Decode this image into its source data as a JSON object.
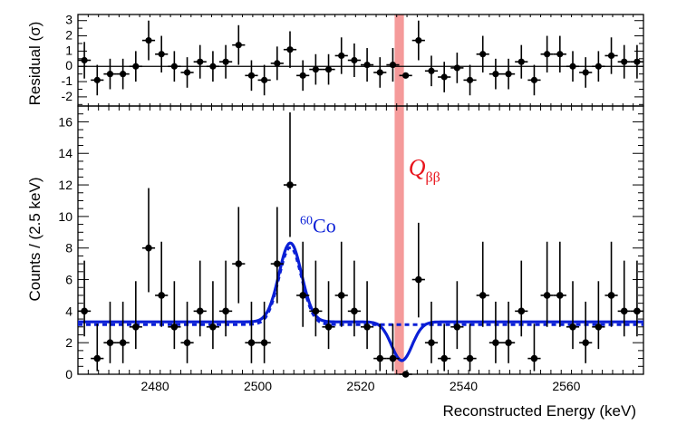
{
  "chart_data": [
    {
      "type": "scatter",
      "panel": "top",
      "ylabel": "Residual (σ)",
      "ylim": [
        -2.6,
        3.4
      ],
      "yticks": [
        -2,
        -1,
        0,
        1,
        2,
        3
      ],
      "xlim": [
        2465,
        2575
      ],
      "points": [
        {
          "x": 2466.25,
          "y": 0.4,
          "err": 1.2
        },
        {
          "x": 2468.75,
          "y": -0.9,
          "err": 1.0
        },
        {
          "x": 2471.25,
          "y": -0.5,
          "err": 1.0
        },
        {
          "x": 2473.75,
          "y": -0.5,
          "err": 1.0
        },
        {
          "x": 2476.25,
          "y": 0.0,
          "err": 1.0
        },
        {
          "x": 2478.75,
          "y": 1.7,
          "err": 1.3
        },
        {
          "x": 2481.25,
          "y": 0.8,
          "err": 1.2
        },
        {
          "x": 2483.75,
          "y": 0.0,
          "err": 1.0
        },
        {
          "x": 2486.25,
          "y": -0.4,
          "err": 1.0
        },
        {
          "x": 2488.75,
          "y": 0.3,
          "err": 1.1
        },
        {
          "x": 2491.25,
          "y": 0.0,
          "err": 1.0
        },
        {
          "x": 2493.75,
          "y": 0.3,
          "err": 1.1
        },
        {
          "x": 2496.25,
          "y": 1.4,
          "err": 1.3
        },
        {
          "x": 2498.75,
          "y": -0.6,
          "err": 1.0
        },
        {
          "x": 2501.25,
          "y": -0.9,
          "err": 1.0
        },
        {
          "x": 2503.75,
          "y": 0.2,
          "err": 1.1
        },
        {
          "x": 2506.25,
          "y": 1.1,
          "err": 1.2
        },
        {
          "x": 2508.75,
          "y": -0.6,
          "err": 1.0
        },
        {
          "x": 2511.25,
          "y": -0.2,
          "err": 1.0
        },
        {
          "x": 2513.75,
          "y": -0.2,
          "err": 1.0
        },
        {
          "x": 2516.25,
          "y": 0.7,
          "err": 1.2
        },
        {
          "x": 2518.75,
          "y": 0.4,
          "err": 1.1
        },
        {
          "x": 2521.25,
          "y": 0.1,
          "err": 1.1
        },
        {
          "x": 2523.75,
          "y": -0.4,
          "err": 1.0
        },
        {
          "x": 2526.25,
          "y": 0.1,
          "err": 1.1
        },
        {
          "x": 2528.75,
          "y": -0.6,
          "err": 0.0
        },
        {
          "x": 2531.25,
          "y": 1.7,
          "err": 1.3
        },
        {
          "x": 2533.75,
          "y": -0.3,
          "err": 1.0
        },
        {
          "x": 2536.25,
          "y": -0.7,
          "err": 1.0
        },
        {
          "x": 2538.75,
          "y": -0.1,
          "err": 1.0
        },
        {
          "x": 2541.25,
          "y": -0.9,
          "err": 1.0
        },
        {
          "x": 2543.75,
          "y": 0.8,
          "err": 1.2
        },
        {
          "x": 2546.25,
          "y": -0.5,
          "err": 1.0
        },
        {
          "x": 2548.75,
          "y": -0.5,
          "err": 1.0
        },
        {
          "x": 2551.25,
          "y": 0.3,
          "err": 1.1
        },
        {
          "x": 2553.75,
          "y": -0.9,
          "err": 1.0
        },
        {
          "x": 2556.25,
          "y": 0.8,
          "err": 1.2
        },
        {
          "x": 2558.75,
          "y": 0.8,
          "err": 1.2
        },
        {
          "x": 2561.25,
          "y": 0.0,
          "err": 1.0
        },
        {
          "x": 2563.75,
          "y": -0.4,
          "err": 1.0
        },
        {
          "x": 2566.25,
          "y": 0.0,
          "err": 1.0
        },
        {
          "x": 2568.75,
          "y": 0.7,
          "err": 1.2
        },
        {
          "x": 2571.25,
          "y": 0.3,
          "err": 1.1
        },
        {
          "x": 2573.75,
          "y": 0.3,
          "err": 1.1
        }
      ]
    },
    {
      "type": "scatter",
      "panel": "bottom",
      "xlabel": "Reconstructed Energy (keV)",
      "ylabel": "Counts / (2.5 keV)",
      "xlim": [
        2465,
        2575
      ],
      "ylim": [
        0,
        17
      ],
      "xticks": [
        2480,
        2500,
        2520,
        2540,
        2560
      ],
      "yticks": [
        0,
        2,
        4,
        6,
        8,
        10,
        12,
        14,
        16
      ],
      "points": [
        {
          "x": 2466.25,
          "y": 4,
          "lo": 2.4,
          "hi": 7.2
        },
        {
          "x": 2468.75,
          "y": 1,
          "lo": 0.2,
          "hi": 3.2
        },
        {
          "x": 2471.25,
          "y": 2,
          "lo": 0.7,
          "hi": 4.6
        },
        {
          "x": 2473.75,
          "y": 2,
          "lo": 0.7,
          "hi": 4.6
        },
        {
          "x": 2476.25,
          "y": 3,
          "lo": 1.6,
          "hi": 5.9
        },
        {
          "x": 2478.75,
          "y": 8,
          "lo": 5.2,
          "hi": 11.8
        },
        {
          "x": 2481.25,
          "y": 5,
          "lo": 3.0,
          "hi": 8.4
        },
        {
          "x": 2483.75,
          "y": 3,
          "lo": 1.6,
          "hi": 5.9
        },
        {
          "x": 2486.25,
          "y": 2,
          "lo": 0.7,
          "hi": 4.6
        },
        {
          "x": 2488.75,
          "y": 4,
          "lo": 2.4,
          "hi": 7.2
        },
        {
          "x": 2491.25,
          "y": 3,
          "lo": 1.6,
          "hi": 5.9
        },
        {
          "x": 2493.75,
          "y": 4,
          "lo": 2.4,
          "hi": 7.2
        },
        {
          "x": 2496.25,
          "y": 7,
          "lo": 4.5,
          "hi": 10.6
        },
        {
          "x": 2498.75,
          "y": 2,
          "lo": 0.7,
          "hi": 4.6
        },
        {
          "x": 2501.25,
          "y": 2,
          "lo": 0.7,
          "hi": 4.6
        },
        {
          "x": 2503.75,
          "y": 7,
          "lo": 4.5,
          "hi": 10.6
        },
        {
          "x": 2506.25,
          "y": 12,
          "lo": 8.7,
          "hi": 16.6
        },
        {
          "x": 2508.75,
          "y": 5,
          "lo": 3.0,
          "hi": 8.4
        },
        {
          "x": 2511.25,
          "y": 4,
          "lo": 2.4,
          "hi": 7.2
        },
        {
          "x": 2513.75,
          "y": 3,
          "lo": 1.6,
          "hi": 5.9
        },
        {
          "x": 2516.25,
          "y": 5,
          "lo": 3.0,
          "hi": 8.4
        },
        {
          "x": 2518.75,
          "y": 4,
          "lo": 2.4,
          "hi": 7.2
        },
        {
          "x": 2521.25,
          "y": 3,
          "lo": 1.6,
          "hi": 5.9
        },
        {
          "x": 2523.75,
          "y": 1,
          "lo": 0.2,
          "hi": 3.2
        },
        {
          "x": 2526.25,
          "y": 1,
          "lo": 0.2,
          "hi": 3.2
        },
        {
          "x": 2528.75,
          "y": 0,
          "lo": 0,
          "hi": 0
        },
        {
          "x": 2531.25,
          "y": 6,
          "lo": 3.6,
          "hi": 9.6
        },
        {
          "x": 2533.75,
          "y": 2,
          "lo": 0.7,
          "hi": 4.6
        },
        {
          "x": 2536.25,
          "y": 1,
          "lo": 0.2,
          "hi": 3.2
        },
        {
          "x": 2538.75,
          "y": 3,
          "lo": 1.6,
          "hi": 5.9
        },
        {
          "x": 2541.25,
          "y": 1,
          "lo": 0.2,
          "hi": 3.2
        },
        {
          "x": 2543.75,
          "y": 5,
          "lo": 3.0,
          "hi": 8.4
        },
        {
          "x": 2546.25,
          "y": 2,
          "lo": 0.7,
          "hi": 4.6
        },
        {
          "x": 2548.75,
          "y": 2,
          "lo": 0.7,
          "hi": 4.6
        },
        {
          "x": 2551.25,
          "y": 4,
          "lo": 2.4,
          "hi": 7.2
        },
        {
          "x": 2553.75,
          "y": 1,
          "lo": 0.2,
          "hi": 3.2
        },
        {
          "x": 2556.25,
          "y": 5,
          "lo": 3.0,
          "hi": 8.4
        },
        {
          "x": 2558.75,
          "y": 5,
          "lo": 3.0,
          "hi": 8.4
        },
        {
          "x": 2561.25,
          "y": 3,
          "lo": 1.6,
          "hi": 5.9
        },
        {
          "x": 2563.75,
          "y": 2,
          "lo": 0.7,
          "hi": 4.6
        },
        {
          "x": 2566.25,
          "y": 3,
          "lo": 1.6,
          "hi": 5.9
        },
        {
          "x": 2568.75,
          "y": 5,
          "lo": 3.0,
          "hi": 8.4
        },
        {
          "x": 2571.25,
          "y": 4,
          "lo": 2.4,
          "hi": 7.2
        },
        {
          "x": 2573.75,
          "y": 4,
          "lo": 2.4,
          "hi": 7.2
        }
      ],
      "fit_model": {
        "baseline": 3.32,
        "cobalt_peak": {
          "center": 2506.3,
          "sigma": 2.2,
          "amplitude": 5.0
        },
        "dip": {
          "center": 2528.0,
          "sigma": 2.0,
          "amplitude": -2.45
        },
        "dashed_baseline_start": 3.15,
        "dashed_baseline_slope": 0.0
      },
      "q_bb": {
        "energy": 2527.5,
        "band_halfwidth": 0.9
      },
      "annotations": {
        "cobalt_superscript": "60",
        "cobalt_label": "Co",
        "qbb_main": "Q",
        "qbb_sub": "ββ"
      },
      "colors": {
        "fit": "#0a1fd6",
        "qbb_band": "#f59a9a",
        "qbb_text": "#e8141c",
        "data": "#000000"
      }
    }
  ]
}
